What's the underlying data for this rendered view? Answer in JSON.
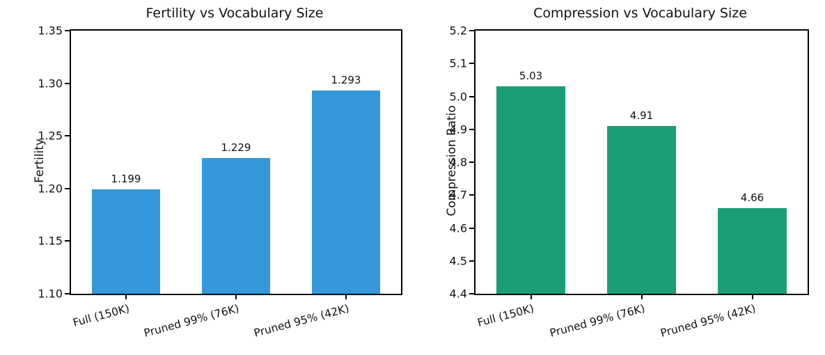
{
  "figure": {
    "background": "#ffffff"
  },
  "chart_data": [
    {
      "type": "bar",
      "title": "Fertility vs Vocabulary Size",
      "xlabel": "",
      "ylabel": "Fertility",
      "categories": [
        "Full (150K)",
        "Pruned 99% (76K)",
        "Pruned 95% (42K)"
      ],
      "values": [
        1.199,
        1.229,
        1.293
      ],
      "bar_labels": [
        "1.199",
        "1.229",
        "1.293"
      ],
      "ylim": [
        1.1,
        1.35
      ],
      "yticks": [
        1.1,
        1.15,
        1.2,
        1.25,
        1.3,
        1.35
      ],
      "ytick_labels": [
        "1.10",
        "1.15",
        "1.20",
        "1.25",
        "1.30",
        "1.35"
      ],
      "bar_color": "#3498db",
      "grid": false,
      "legend": null
    },
    {
      "type": "bar",
      "title": "Compression vs Vocabulary Size",
      "xlabel": "",
      "ylabel": "Compression Ratio",
      "categories": [
        "Full (150K)",
        "Pruned 99% (76K)",
        "Pruned 95% (42K)"
      ],
      "values": [
        5.03,
        4.91,
        4.66
      ],
      "bar_labels": [
        "5.03",
        "4.91",
        "4.66"
      ],
      "ylim": [
        4.4,
        5.2
      ],
      "yticks": [
        4.4,
        4.5,
        4.6,
        4.7,
        4.8,
        4.9,
        5.0,
        5.1,
        5.2
      ],
      "ytick_labels": [
        "4.4",
        "4.5",
        "4.6",
        "4.7",
        "4.8",
        "4.9",
        "5.0",
        "5.1",
        "5.2"
      ],
      "bar_color": "#1b9e77",
      "grid": false,
      "legend": null
    }
  ]
}
